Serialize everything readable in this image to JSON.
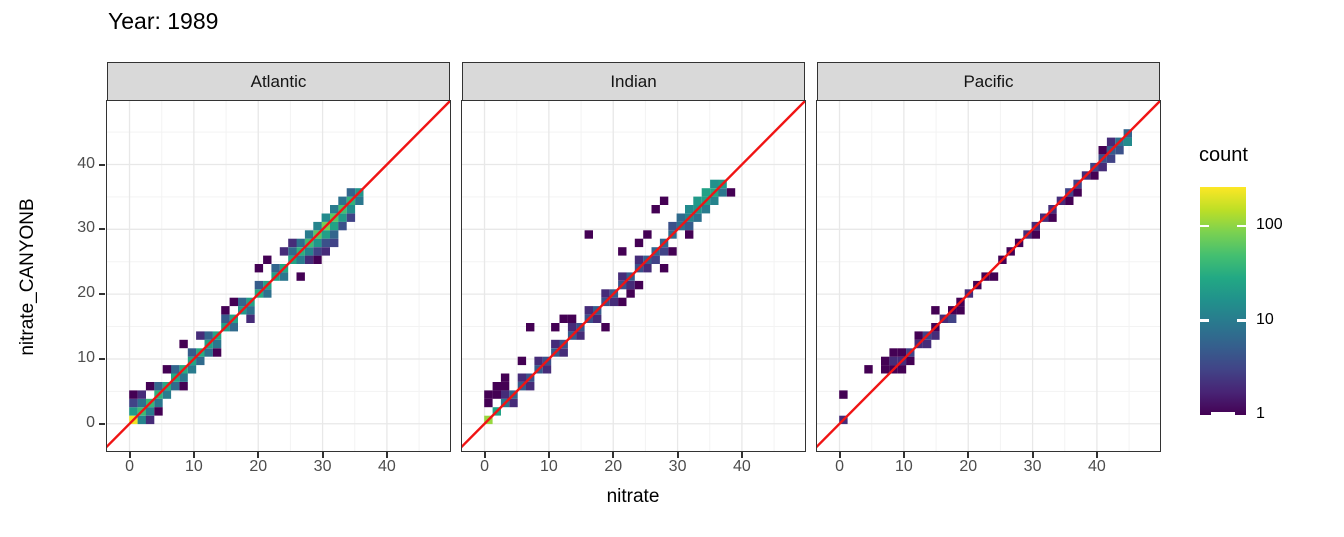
{
  "title": "Year: 1989",
  "colors": {
    "background": "#ffffff",
    "panel_background": "#ffffff",
    "strip_background": "#d9d9d9",
    "panel_border": "#333333",
    "grid_major": "#e8e8e8",
    "grid_minor": "#f3f3f3",
    "tick_mark": "#333333",
    "tick_label": "#4d4d4d",
    "text": "#000000",
    "identity_line": "#f01414",
    "viridis_stops": [
      "#440154",
      "#482475",
      "#414487",
      "#355f8d",
      "#2a788e",
      "#21918c",
      "#22a884",
      "#44bf70",
      "#7ad151",
      "#bddf26",
      "#fde725"
    ]
  },
  "chart_data": {
    "type": "heatmap",
    "subtype": "bin2d-scatter-density",
    "title": "Year: 1989",
    "xlabel": "nitrate",
    "ylabel": "nitrate_CANYONB",
    "facet_labels": [
      "Atlantic",
      "Indian",
      "Pacific"
    ],
    "x_ticks": [
      0,
      10,
      20,
      30,
      40
    ],
    "y_ticks": [
      0,
      10,
      20,
      30,
      40
    ],
    "x_minor_ticks": [
      5,
      15,
      25,
      35,
      45
    ],
    "y_minor_ticks": [
      5,
      15,
      25,
      35,
      45
    ],
    "xlim": [
      -3.5,
      49.8
    ],
    "ylim": [
      -4.2,
      49.8
    ],
    "bin_width": 1.3,
    "grid": true,
    "identity_line": {
      "equation": "y = x",
      "color": "#f01414"
    },
    "legend": {
      "title": "count",
      "position": "right",
      "scale": "log10",
      "ticks": [
        100,
        10,
        1
      ],
      "max_count": 260
    },
    "facets": [
      {
        "label": "Atlantic",
        "bins": [
          [
            0.6,
            0.6,
            230
          ],
          [
            1.9,
            1.9,
            45
          ],
          [
            3.2,
            3.2,
            40
          ],
          [
            4.5,
            4.5,
            35
          ],
          [
            5.8,
            5.8,
            30
          ],
          [
            7.1,
            7.1,
            28
          ],
          [
            8.4,
            8.4,
            30
          ],
          [
            9.7,
            9.7,
            26
          ],
          [
            11,
            11,
            30
          ],
          [
            12.3,
            12.3,
            24
          ],
          [
            13.6,
            13.6,
            28
          ],
          [
            14.9,
            14.9,
            22
          ],
          [
            16.2,
            16.2,
            25
          ],
          [
            17.5,
            17.5,
            20
          ],
          [
            18.8,
            18.8,
            24
          ],
          [
            20.1,
            20.1,
            30
          ],
          [
            21.4,
            21.4,
            26
          ],
          [
            22.7,
            22.7,
            24
          ],
          [
            24,
            24,
            28
          ],
          [
            25.3,
            25.3,
            26
          ],
          [
            26.6,
            26.6,
            34
          ],
          [
            27.9,
            27.9,
            45
          ],
          [
            29.2,
            29.2,
            60
          ],
          [
            30.5,
            30.5,
            80
          ],
          [
            31.8,
            31.8,
            60
          ],
          [
            33.1,
            33.1,
            48
          ],
          [
            34.4,
            34.4,
            36
          ],
          [
            35.7,
            35.7,
            18
          ],
          [
            1.9,
            0.6,
            12
          ],
          [
            3.2,
            1.9,
            10
          ],
          [
            4.5,
            3.2,
            9
          ],
          [
            5.8,
            4.5,
            10
          ],
          [
            7.1,
            5.8,
            7
          ],
          [
            8.4,
            7.1,
            9
          ],
          [
            9.7,
            8.4,
            10
          ],
          [
            11,
            9.7,
            7
          ],
          [
            12.3,
            11,
            8
          ],
          [
            13.6,
            12.3,
            9
          ],
          [
            16.2,
            14.9,
            7
          ],
          [
            18.8,
            17.5,
            8
          ],
          [
            21.4,
            20.1,
            8
          ],
          [
            24,
            22.7,
            9
          ],
          [
            26.6,
            25.3,
            10
          ],
          [
            27.9,
            26.6,
            12
          ],
          [
            29.2,
            27.9,
            18
          ],
          [
            30.5,
            29.2,
            22
          ],
          [
            31.8,
            30.5,
            25
          ],
          [
            33.1,
            31.8,
            20
          ],
          [
            34.4,
            33.1,
            15
          ],
          [
            35.7,
            34.4,
            9
          ],
          [
            0.6,
            1.9,
            20
          ],
          [
            1.9,
            3.2,
            8
          ],
          [
            4.5,
            5.8,
            6
          ],
          [
            7.1,
            8.4,
            6
          ],
          [
            9.7,
            11,
            5
          ],
          [
            12.3,
            13.6,
            6
          ],
          [
            14.9,
            16.2,
            5
          ],
          [
            17.5,
            18.8,
            6
          ],
          [
            20.1,
            21.4,
            5
          ],
          [
            22.7,
            24,
            6
          ],
          [
            25.3,
            26.6,
            7
          ],
          [
            26.6,
            27.9,
            8
          ],
          [
            27.9,
            29.2,
            10
          ],
          [
            29.2,
            30.5,
            12
          ],
          [
            30.5,
            31.8,
            14
          ],
          [
            31.8,
            33.1,
            10
          ],
          [
            33.1,
            34.4,
            8
          ],
          [
            34.4,
            35.7,
            6
          ],
          [
            0.6,
            3.2,
            3
          ],
          [
            0.6,
            4.5,
            1
          ],
          [
            1.9,
            4.5,
            2
          ],
          [
            3.2,
            0.6,
            2
          ],
          [
            4.5,
            1.9,
            1
          ],
          [
            3.2,
            5.8,
            1
          ],
          [
            5.8,
            8.4,
            1
          ],
          [
            8.4,
            5.8,
            1
          ],
          [
            8.4,
            12.3,
            1
          ],
          [
            11,
            13.6,
            2
          ],
          [
            13.6,
            11,
            1
          ],
          [
            14.9,
            17.5,
            1
          ],
          [
            16.2,
            18.8,
            1
          ],
          [
            18.8,
            16.2,
            2
          ],
          [
            20.1,
            24,
            1
          ],
          [
            21.4,
            25.3,
            1
          ],
          [
            25.3,
            27.9,
            2
          ],
          [
            26.6,
            22.7,
            1
          ],
          [
            27.9,
            25.3,
            2
          ],
          [
            29.2,
            25.3,
            1
          ],
          [
            29.2,
            26.6,
            3
          ],
          [
            30.5,
            26.6,
            2
          ],
          [
            30.5,
            27.9,
            4
          ],
          [
            31.8,
            27.9,
            3
          ],
          [
            31.8,
            29.2,
            6
          ],
          [
            33.1,
            30.5,
            4
          ],
          [
            34.4,
            31.8,
            3
          ],
          [
            24,
            26.6,
            2
          ]
        ]
      },
      {
        "label": "Indian",
        "bins": [
          [
            0.6,
            0.6,
            110
          ],
          [
            1.9,
            1.9,
            25
          ],
          [
            3.2,
            3.2,
            9
          ],
          [
            4.5,
            4.5,
            6
          ],
          [
            5.8,
            5.8,
            5
          ],
          [
            7.1,
            7.1,
            4
          ],
          [
            8.4,
            8.4,
            5
          ],
          [
            9.7,
            9.7,
            4
          ],
          [
            11,
            11,
            5
          ],
          [
            12.3,
            12.3,
            4
          ],
          [
            13.6,
            13.6,
            5
          ],
          [
            14.9,
            14.9,
            4
          ],
          [
            16.2,
            16.2,
            4
          ],
          [
            17.5,
            17.5,
            5
          ],
          [
            18.8,
            18.8,
            4
          ],
          [
            20.1,
            20.1,
            5
          ],
          [
            21.4,
            21.4,
            4
          ],
          [
            22.7,
            22.7,
            5
          ],
          [
            24,
            24,
            4
          ],
          [
            25.3,
            25.3,
            5
          ],
          [
            26.6,
            26.6,
            6
          ],
          [
            27.9,
            27.9,
            6
          ],
          [
            29.2,
            29.2,
            7
          ],
          [
            30.5,
            30.5,
            8
          ],
          [
            31.8,
            31.8,
            12
          ],
          [
            33.1,
            33.1,
            18
          ],
          [
            34.4,
            34.4,
            24
          ],
          [
            35.7,
            35.7,
            28
          ],
          [
            37,
            37,
            20
          ],
          [
            31.8,
            33.1,
            14
          ],
          [
            33.1,
            34.4,
            20
          ],
          [
            34.4,
            35.7,
            24
          ],
          [
            35.7,
            37,
            16
          ],
          [
            33.1,
            31.8,
            8
          ],
          [
            34.4,
            33.1,
            10
          ],
          [
            35.7,
            34.4,
            12
          ],
          [
            37,
            35.7,
            9
          ],
          [
            30.5,
            31.8,
            7
          ],
          [
            31.8,
            30.5,
            5
          ],
          [
            29.2,
            30.5,
            4
          ],
          [
            38.3,
            35.7,
            1
          ],
          [
            3.2,
            4.5,
            2
          ],
          [
            5.8,
            7.1,
            2
          ],
          [
            8.4,
            9.7,
            2
          ],
          [
            11,
            12.3,
            2
          ],
          [
            13.6,
            14.9,
            2
          ],
          [
            16.2,
            17.5,
            2
          ],
          [
            18.8,
            20.1,
            2
          ],
          [
            21.4,
            22.7,
            2
          ],
          [
            24,
            25.3,
            2
          ],
          [
            4.5,
            3.2,
            2
          ],
          [
            9.7,
            8.4,
            2
          ],
          [
            14.9,
            13.6,
            2
          ],
          [
            20.1,
            18.8,
            2
          ],
          [
            25.3,
            24,
            2
          ],
          [
            27.9,
            26.6,
            3
          ],
          [
            26.6,
            25.3,
            3
          ],
          [
            22.7,
            21.4,
            2
          ],
          [
            17.5,
            16.2,
            2
          ],
          [
            12.3,
            11,
            2
          ],
          [
            7.1,
            5.8,
            2
          ],
          [
            0.6,
            4.5,
            1
          ],
          [
            1.9,
            5.8,
            1
          ],
          [
            3.2,
            5.8,
            1
          ],
          [
            1.9,
            4.5,
            1
          ],
          [
            0.6,
            3.2,
            1
          ],
          [
            3.2,
            7.1,
            1
          ],
          [
            7.1,
            14.9,
            1
          ],
          [
            12.3,
            16.2,
            1
          ],
          [
            13.6,
            16.2,
            1
          ],
          [
            16.2,
            29.2,
            1
          ],
          [
            26.6,
            33.1,
            1
          ],
          [
            27.9,
            34.4,
            1
          ],
          [
            24,
            27.9,
            1
          ],
          [
            21.4,
            26.6,
            1
          ],
          [
            25.3,
            29.2,
            1
          ],
          [
            27.9,
            24,
            1
          ],
          [
            29.2,
            26.6,
            1
          ],
          [
            31.8,
            29.2,
            1
          ],
          [
            24,
            21.4,
            1
          ],
          [
            22.7,
            20.1,
            1
          ],
          [
            21.4,
            18.8,
            1
          ],
          [
            5.8,
            9.7,
            1
          ],
          [
            11,
            14.9,
            1
          ],
          [
            18.8,
            14.9,
            1
          ]
        ]
      },
      {
        "label": "Pacific",
        "bins": [
          [
            0.6,
            0.6,
            2
          ],
          [
            0.6,
            4.5,
            1
          ],
          [
            4.5,
            8.4,
            1
          ],
          [
            7.1,
            8.4,
            1
          ],
          [
            7.1,
            9.7,
            1
          ],
          [
            8.4,
            8.4,
            1
          ],
          [
            8.4,
            9.7,
            2
          ],
          [
            8.4,
            11,
            1
          ],
          [
            9.7,
            9.7,
            2
          ],
          [
            9.7,
            8.4,
            1
          ],
          [
            9.7,
            11,
            1
          ],
          [
            11,
            11,
            3
          ],
          [
            11,
            9.7,
            1
          ],
          [
            12.3,
            12.3,
            2
          ],
          [
            12.3,
            13.6,
            1
          ],
          [
            13.6,
            12.3,
            2
          ],
          [
            13.6,
            13.6,
            3
          ],
          [
            14.9,
            13.6,
            2
          ],
          [
            14.9,
            14.9,
            1
          ],
          [
            14.9,
            17.5,
            1
          ],
          [
            16.2,
            16.2,
            2
          ],
          [
            17.5,
            16.2,
            3
          ],
          [
            17.5,
            17.5,
            1
          ],
          [
            18.8,
            17.5,
            1
          ],
          [
            18.8,
            18.8,
            1
          ],
          [
            20.1,
            20.1,
            2
          ],
          [
            21.4,
            21.4,
            1
          ],
          [
            22.7,
            22.7,
            1
          ],
          [
            24,
            22.7,
            1
          ],
          [
            25.3,
            25.3,
            1
          ],
          [
            26.6,
            26.6,
            1
          ],
          [
            27.9,
            27.9,
            1
          ],
          [
            29.2,
            29.2,
            2
          ],
          [
            30.5,
            29.2,
            1
          ],
          [
            30.5,
            30.5,
            2
          ],
          [
            31.8,
            31.8,
            2
          ],
          [
            33.1,
            31.8,
            1
          ],
          [
            33.1,
            33.1,
            2
          ],
          [
            34.4,
            34.4,
            2
          ],
          [
            35.7,
            34.4,
            1
          ],
          [
            35.7,
            35.7,
            3
          ],
          [
            37,
            35.7,
            1
          ],
          [
            37,
            37,
            3
          ],
          [
            38.3,
            38.3,
            2
          ],
          [
            39.6,
            38.3,
            1
          ],
          [
            39.6,
            39.6,
            3
          ],
          [
            40.9,
            39.6,
            2
          ],
          [
            40.9,
            40.9,
            4
          ],
          [
            40.9,
            42.2,
            1
          ],
          [
            42.2,
            40.9,
            3
          ],
          [
            42.2,
            42.2,
            5
          ],
          [
            42.2,
            43.5,
            2
          ],
          [
            43.5,
            42.2,
            4
          ],
          [
            43.5,
            43.5,
            8
          ],
          [
            44.8,
            43.5,
            14
          ],
          [
            44.8,
            44.8,
            6
          ]
        ]
      }
    ]
  }
}
